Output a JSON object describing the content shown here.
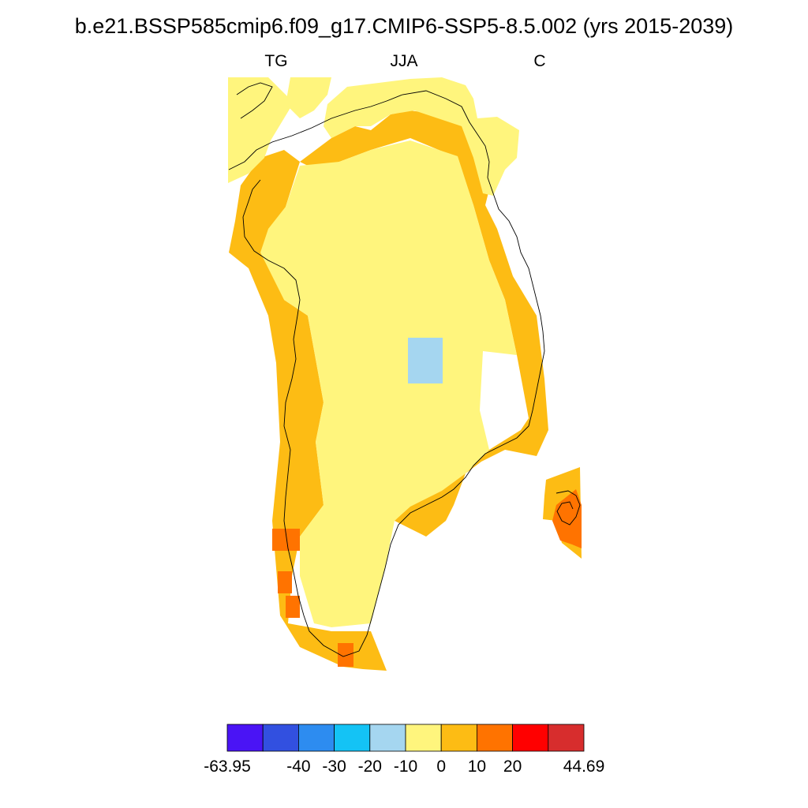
{
  "title": "b.e21.BSSP585cmip6.f09_g17.CMIP6-SSP5-8.5.002 (yrs 2015-2039)",
  "subtitle": {
    "left": "TG",
    "center": "JJA",
    "right": "C"
  },
  "colors": {
    "bin_0": "#4a14f5",
    "bin_1": "#3250e0",
    "bin_2": "#2d8cf0",
    "bin_3": "#14c3f5",
    "bin_4": "#a5d6f0",
    "bin_5": "#fff57d",
    "bin_6": "#fdbc14",
    "bin_7": "#ff7300",
    "bin_8": "#ff0000",
    "bin_9": "#d72d2d",
    "coastline": "#000000"
  },
  "colorbar": {
    "tick_labels": [
      "-63.95",
      "-40",
      "-30",
      "-20",
      "-10",
      "0",
      "10",
      "20",
      "44.69"
    ]
  }
}
